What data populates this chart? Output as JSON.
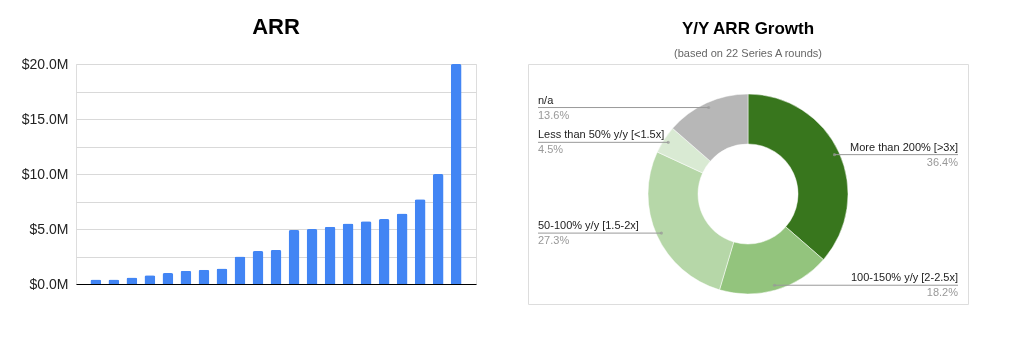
{
  "chart_data": [
    {
      "type": "bar",
      "title": "ARR",
      "categories": [
        null,
        null,
        null,
        null,
        null,
        null,
        null,
        null,
        null,
        null,
        null,
        null,
        null,
        null,
        null,
        null,
        null,
        null,
        null,
        null,
        null
      ],
      "values": [
        0.4,
        0.4,
        0.6,
        0.8,
        1.0,
        1.2,
        1.3,
        1.4,
        2.5,
        3.0,
        3.1,
        4.9,
        5.0,
        5.2,
        5.5,
        5.7,
        5.9,
        6.4,
        7.7,
        10.0,
        20.0
      ],
      "color": "#4285f4",
      "ylim": [
        0,
        20
      ],
      "yticks": [
        {
          "value": 0,
          "label": "$0.0M"
        },
        {
          "value": 2.5,
          "label": null
        },
        {
          "value": 5,
          "label": "$5.0M"
        },
        {
          "value": 7.5,
          "label": null
        },
        {
          "value": 10,
          "label": "$10.0M"
        },
        {
          "value": 12.5,
          "label": null
        },
        {
          "value": 15,
          "label": "$15.0M"
        },
        {
          "value": 17.5,
          "label": null
        },
        {
          "value": 20,
          "label": "$20.0M"
        }
      ],
      "grid": "y",
      "tick_labels": "y"
    },
    {
      "type": "donut",
      "title": "Y/Y ARR Growth",
      "subtitle": "(based on 22 Series A rounds)",
      "categories": [
        "More than 200% [>3x]",
        "100-150% y/y [2-2.5x]",
        "50-100% y/y [1.5-2x]",
        "Less than 50% y/y [<1.5x]",
        "n/a"
      ],
      "values": [
        36.4,
        18.2,
        27.3,
        4.5,
        13.6
      ],
      "colors": [
        "#38761d",
        "#93c47d",
        "#b6d7a8",
        "#d9ead3",
        "#b7b7b7"
      ],
      "value_labels": [
        "36.4%",
        "18.2%",
        "27.3%",
        "4.5%",
        "13.6%"
      ]
    }
  ]
}
